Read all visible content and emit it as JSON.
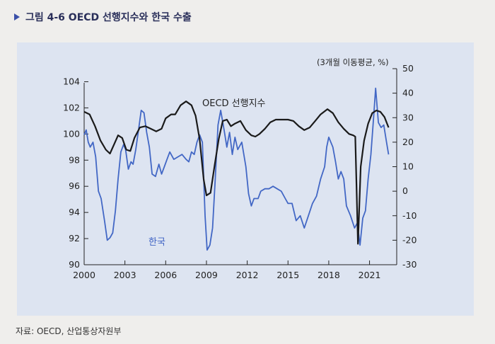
{
  "figure": {
    "title": "그림 4-6 OECD 선행지수와 한국 수출",
    "source": "자료: OECD, 산업통상자원부"
  },
  "chart_data": {
    "type": "line",
    "title": "그림 4-6 OECD 선행지수와 한국 수출",
    "y2label": "(3개월 이동평균, %)",
    "x_ticks": [
      "2000",
      "2003",
      "2006",
      "2009",
      "2012",
      "2015",
      "2018",
      "2021"
    ],
    "y_ticks": [
      90,
      92,
      94,
      96,
      98,
      100,
      102,
      104
    ],
    "y2_ticks": [
      -30,
      -20,
      -10,
      0,
      10,
      20,
      30,
      40,
      50
    ],
    "xlim": [
      2000,
      2023
    ],
    "ylim": [
      90,
      105
    ],
    "y2lim": [
      -30,
      50
    ],
    "grid": false,
    "series": [
      {
        "name": "OECD 선행지수",
        "axis": "left",
        "color": "#1a1a1a",
        "points": [
          [
            2000.0,
            101.7
          ],
          [
            2000.4,
            101.5
          ],
          [
            2000.8,
            100.6
          ],
          [
            2001.2,
            99.5
          ],
          [
            2001.6,
            98.8
          ],
          [
            2001.9,
            98.5
          ],
          [
            2002.2,
            99.2
          ],
          [
            2002.5,
            99.9
          ],
          [
            2002.8,
            99.7
          ],
          [
            2003.1,
            98.8
          ],
          [
            2003.4,
            98.7
          ],
          [
            2003.7,
            99.7
          ],
          [
            2004.1,
            100.5
          ],
          [
            2004.5,
            100.6
          ],
          [
            2004.9,
            100.4
          ],
          [
            2005.3,
            100.2
          ],
          [
            2005.7,
            100.4
          ],
          [
            2006.0,
            101.2
          ],
          [
            2006.4,
            101.5
          ],
          [
            2006.7,
            101.5
          ],
          [
            2007.1,
            102.2
          ],
          [
            2007.5,
            102.5
          ],
          [
            2007.9,
            102.2
          ],
          [
            2008.2,
            101.4
          ],
          [
            2008.5,
            99.6
          ],
          [
            2008.8,
            96.5
          ],
          [
            2009.0,
            95.3
          ],
          [
            2009.3,
            95.5
          ],
          [
            2009.6,
            97.6
          ],
          [
            2009.9,
            99.6
          ],
          [
            2010.2,
            101.0
          ],
          [
            2010.5,
            101.1
          ],
          [
            2010.8,
            100.6
          ],
          [
            2011.1,
            100.8
          ],
          [
            2011.5,
            101.0
          ],
          [
            2011.9,
            100.3
          ],
          [
            2012.3,
            99.9
          ],
          [
            2012.6,
            99.8
          ],
          [
            2012.9,
            100.0
          ],
          [
            2013.3,
            100.4
          ],
          [
            2013.7,
            100.9
          ],
          [
            2014.1,
            101.1
          ],
          [
            2014.5,
            101.1
          ],
          [
            2015.0,
            101.1
          ],
          [
            2015.4,
            101.0
          ],
          [
            2015.8,
            100.6
          ],
          [
            2016.2,
            100.3
          ],
          [
            2016.6,
            100.5
          ],
          [
            2017.0,
            101.0
          ],
          [
            2017.4,
            101.5
          ],
          [
            2017.9,
            101.9
          ],
          [
            2018.3,
            101.6
          ],
          [
            2018.7,
            100.9
          ],
          [
            2019.1,
            100.4
          ],
          [
            2019.5,
            100.0
          ],
          [
            2019.8,
            99.9
          ],
          [
            2019.95,
            99.8
          ],
          [
            2020.15,
            91.6
          ],
          [
            2020.35,
            97.5
          ],
          [
            2020.6,
            99.5
          ],
          [
            2020.9,
            100.8
          ],
          [
            2021.2,
            101.6
          ],
          [
            2021.5,
            101.8
          ],
          [
            2021.8,
            101.7
          ],
          [
            2022.1,
            101.3
          ],
          [
            2022.4,
            100.5
          ]
        ]
      },
      {
        "name": "한국",
        "axis": "right",
        "color": "#4267c5",
        "points": [
          [
            2000.0,
            23
          ],
          [
            2000.15,
            25
          ],
          [
            2000.3,
            20
          ],
          [
            2000.45,
            18
          ],
          [
            2000.65,
            20
          ],
          [
            2000.85,
            14
          ],
          [
            2001.05,
            0
          ],
          [
            2001.25,
            -3
          ],
          [
            2001.5,
            -12
          ],
          [
            2001.7,
            -20
          ],
          [
            2001.9,
            -19
          ],
          [
            2002.1,
            -17
          ],
          [
            2002.3,
            -8
          ],
          [
            2002.5,
            5
          ],
          [
            2002.7,
            16
          ],
          [
            2002.9,
            19
          ],
          [
            2003.05,
            17
          ],
          [
            2003.25,
            9
          ],
          [
            2003.45,
            12
          ],
          [
            2003.6,
            11
          ],
          [
            2003.8,
            17
          ],
          [
            2004.0,
            25
          ],
          [
            2004.2,
            33
          ],
          [
            2004.4,
            32
          ],
          [
            2004.6,
            24
          ],
          [
            2004.8,
            18
          ],
          [
            2005.0,
            7
          ],
          [
            2005.25,
            6
          ],
          [
            2005.5,
            11
          ],
          [
            2005.7,
            7
          ],
          [
            2005.9,
            10
          ],
          [
            2006.1,
            13
          ],
          [
            2006.3,
            16
          ],
          [
            2006.6,
            13
          ],
          [
            2006.9,
            14
          ],
          [
            2007.2,
            15
          ],
          [
            2007.5,
            13
          ],
          [
            2007.7,
            12
          ],
          [
            2007.9,
            16
          ],
          [
            2008.1,
            15
          ],
          [
            2008.3,
            20
          ],
          [
            2008.5,
            23
          ],
          [
            2008.7,
            20
          ],
          [
            2008.9,
            -10
          ],
          [
            2009.05,
            -24
          ],
          [
            2009.25,
            -22
          ],
          [
            2009.45,
            -15
          ],
          [
            2009.65,
            5
          ],
          [
            2009.85,
            27
          ],
          [
            2010.05,
            33
          ],
          [
            2010.3,
            25
          ],
          [
            2010.5,
            18
          ],
          [
            2010.7,
            24
          ],
          [
            2010.9,
            15
          ],
          [
            2011.1,
            22
          ],
          [
            2011.3,
            17
          ],
          [
            2011.6,
            20
          ],
          [
            2011.9,
            10
          ],
          [
            2012.1,
            -1
          ],
          [
            2012.3,
            -6
          ],
          [
            2012.5,
            -3
          ],
          [
            2012.8,
            -3
          ],
          [
            2013.0,
            0
          ],
          [
            2013.3,
            1
          ],
          [
            2013.6,
            1
          ],
          [
            2013.9,
            2
          ],
          [
            2014.2,
            1
          ],
          [
            2014.5,
            0
          ],
          [
            2014.8,
            -3
          ],
          [
            2015.0,
            -5
          ],
          [
            2015.3,
            -5
          ],
          [
            2015.6,
            -12
          ],
          [
            2015.9,
            -10
          ],
          [
            2016.2,
            -15
          ],
          [
            2016.5,
            -10
          ],
          [
            2016.8,
            -5
          ],
          [
            2017.1,
            -2
          ],
          [
            2017.4,
            5
          ],
          [
            2017.7,
            10
          ],
          [
            2017.85,
            18
          ],
          [
            2018.0,
            22
          ],
          [
            2018.3,
            18
          ],
          [
            2018.5,
            12
          ],
          [
            2018.7,
            5
          ],
          [
            2018.9,
            8
          ],
          [
            2019.1,
            5
          ],
          [
            2019.3,
            -6
          ],
          [
            2019.6,
            -10
          ],
          [
            2019.9,
            -15
          ],
          [
            2020.1,
            -13
          ],
          [
            2020.3,
            -22
          ],
          [
            2020.5,
            -11
          ],
          [
            2020.7,
            -8
          ],
          [
            2020.9,
            5
          ],
          [
            2021.1,
            15
          ],
          [
            2021.3,
            30
          ],
          [
            2021.45,
            42
          ],
          [
            2021.65,
            28
          ],
          [
            2021.85,
            26
          ],
          [
            2022.05,
            27
          ],
          [
            2022.25,
            20
          ],
          [
            2022.4,
            15
          ]
        ]
      }
    ]
  }
}
